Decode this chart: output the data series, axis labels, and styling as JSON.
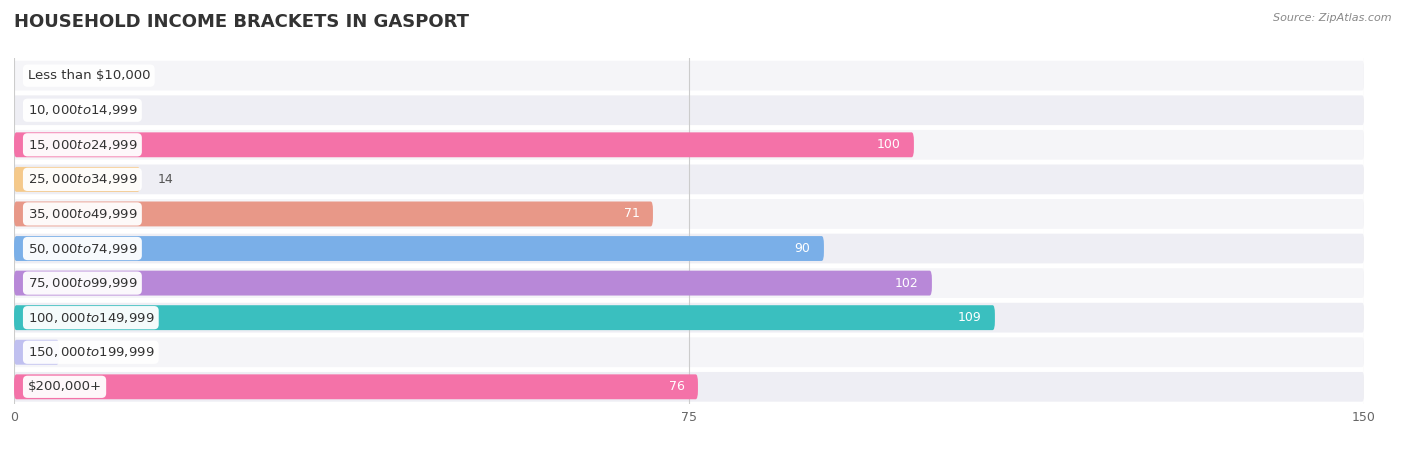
{
  "title": "HOUSEHOLD INCOME BRACKETS IN GASPORT",
  "source": "Source: ZipAtlas.com",
  "categories": [
    "Less than $10,000",
    "$10,000 to $14,999",
    "$15,000 to $24,999",
    "$25,000 to $34,999",
    "$35,000 to $49,999",
    "$50,000 to $74,999",
    "$75,000 to $99,999",
    "$100,000 to $149,999",
    "$150,000 to $199,999",
    "$200,000+"
  ],
  "values": [
    0,
    0,
    100,
    14,
    71,
    90,
    102,
    109,
    5,
    76
  ],
  "bar_colors": [
    "#6dd0cf",
    "#aaaae0",
    "#f472a8",
    "#f5c98a",
    "#e89888",
    "#7aafe8",
    "#b888d8",
    "#3abfbf",
    "#c0c0f0",
    "#f472a8"
  ],
  "xlim": [
    0,
    150
  ],
  "xticks": [
    0,
    75,
    150
  ],
  "title_fontsize": 13,
  "label_fontsize": 9.5,
  "value_fontsize": 9,
  "background_color": "#ffffff",
  "row_bg_odd": "#f5f5f8",
  "row_bg_even": "#eeeef4"
}
